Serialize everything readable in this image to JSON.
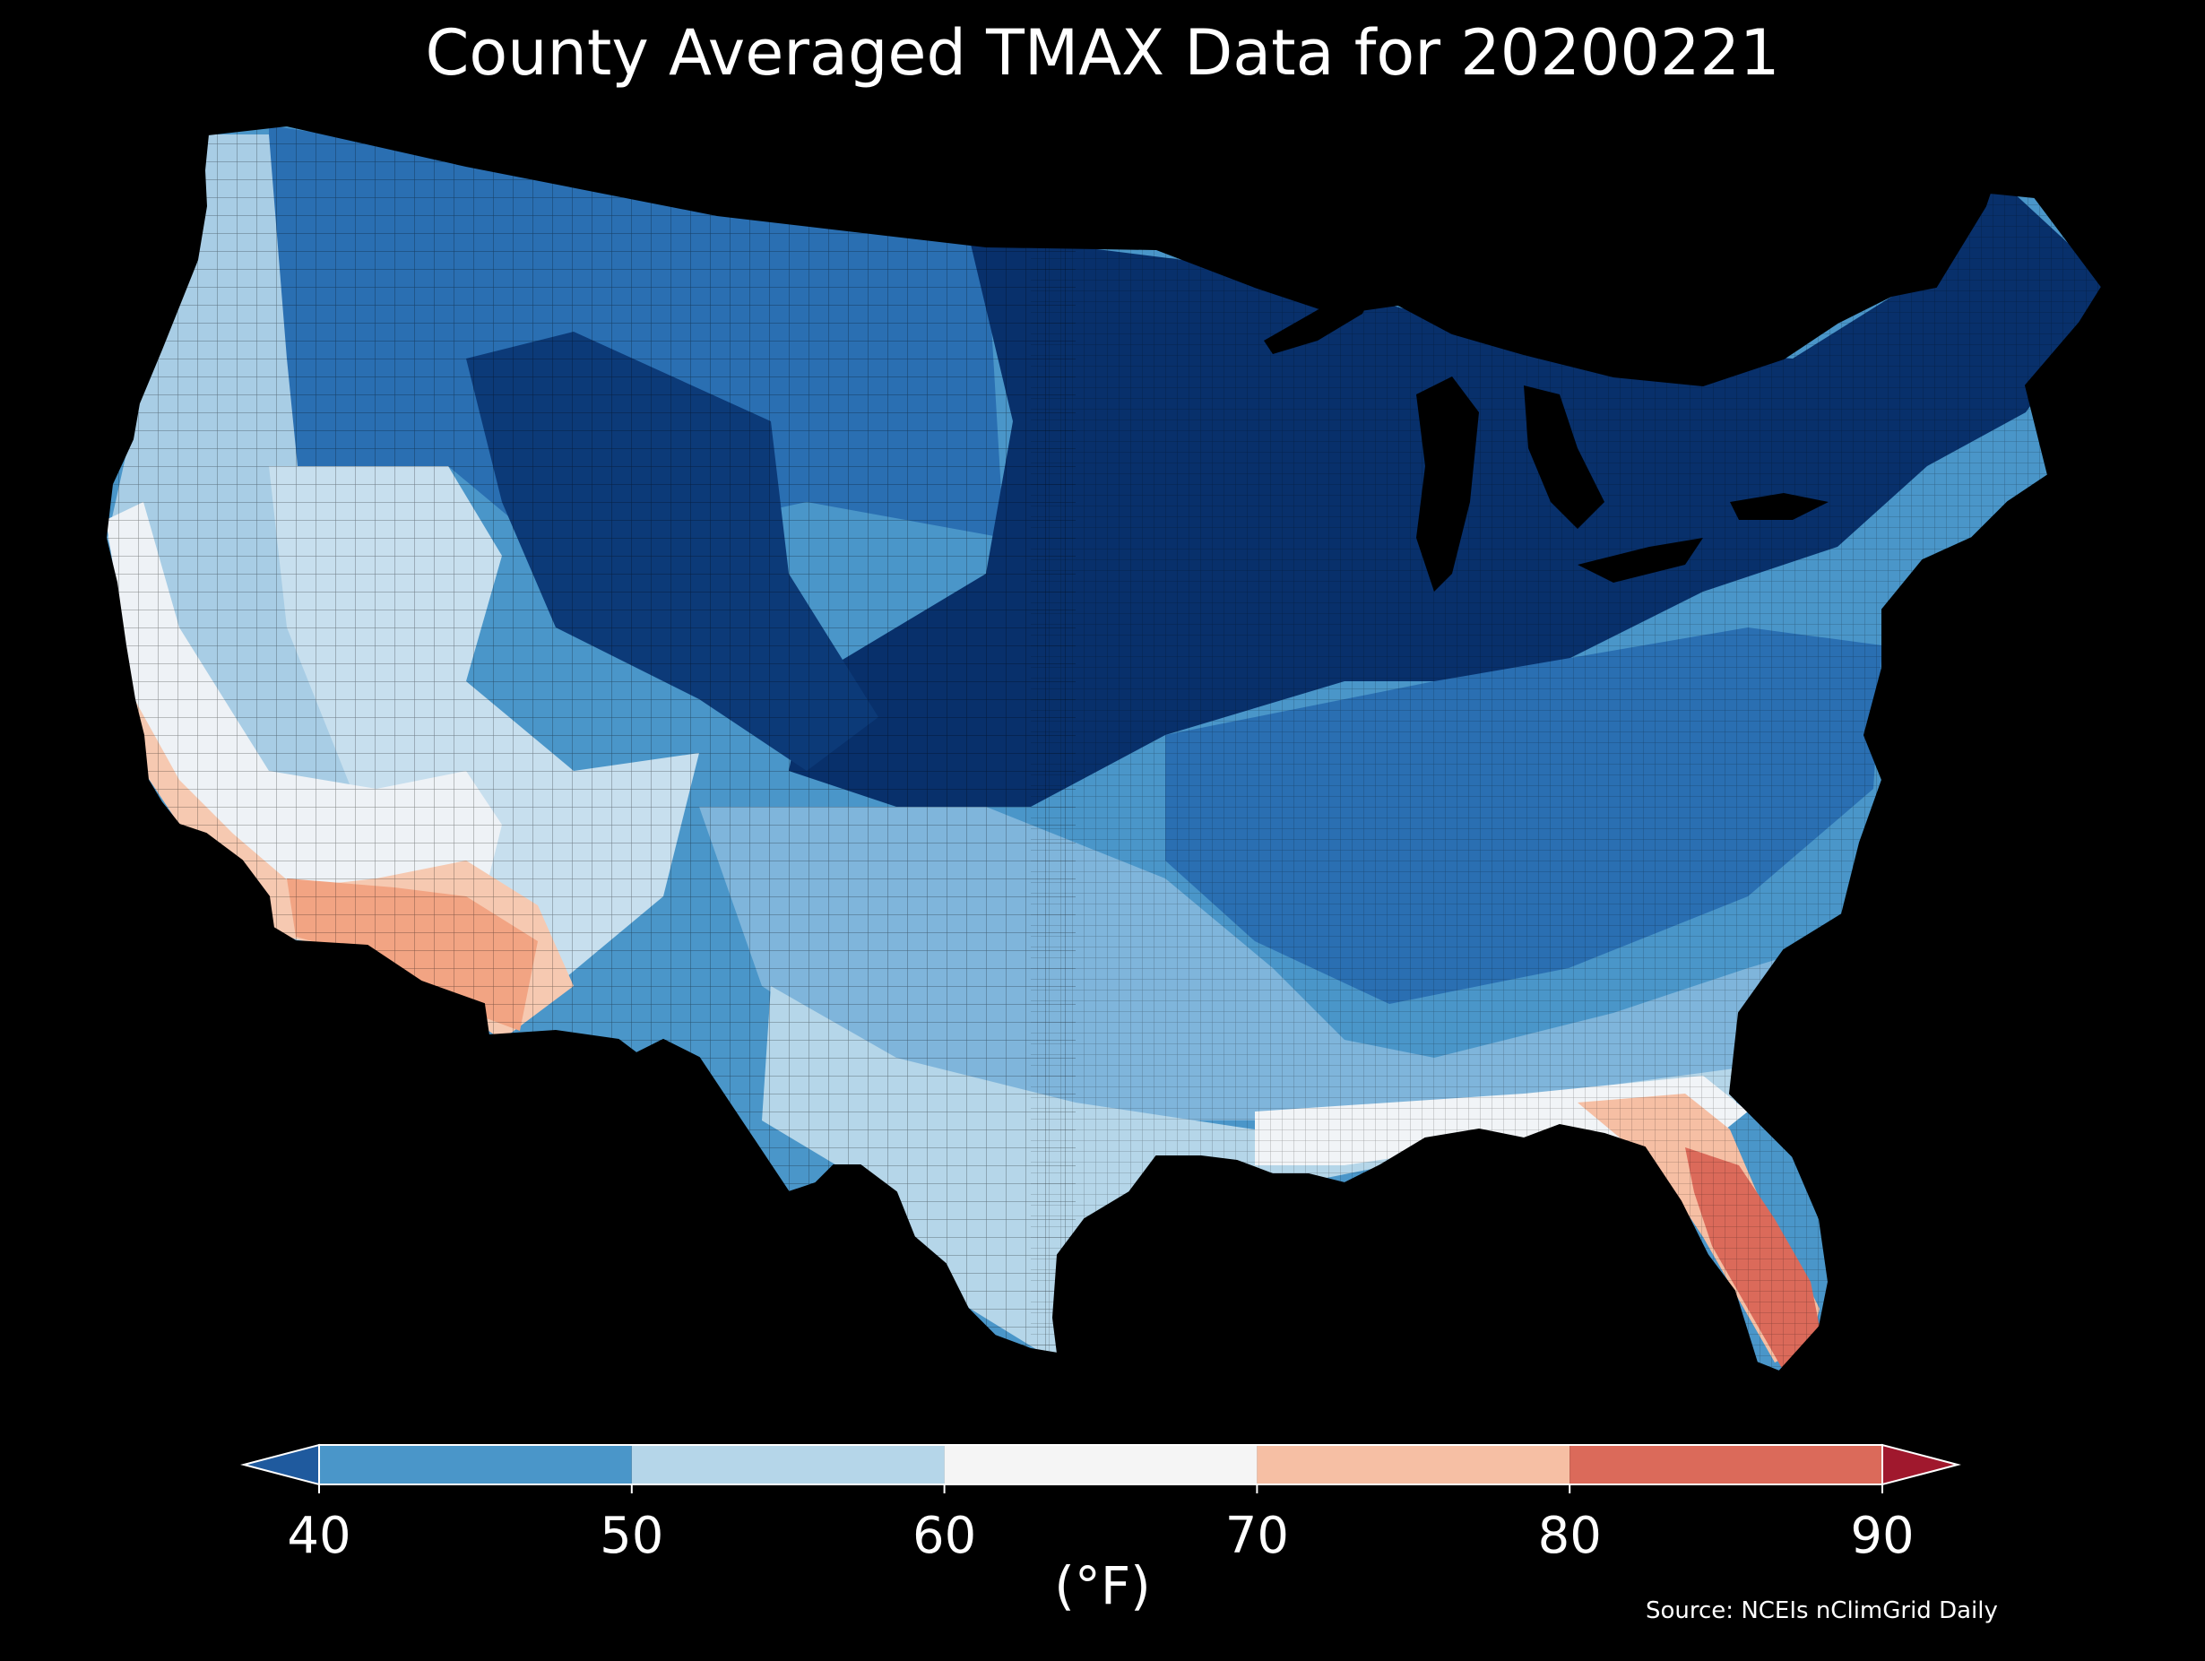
{
  "title": "County Averaged TMAX Data for 20200221",
  "colorbar": {
    "unit_label": "(°F)",
    "ticks": [
      "40",
      "50",
      "60",
      "70",
      "80",
      "90"
    ],
    "bins": [
      {
        "range": "<40",
        "color": "#1f5a9e"
      },
      {
        "range": "40-50",
        "color": "#4a96c9"
      },
      {
        "range": "50-60",
        "color": "#b5d6e9"
      },
      {
        "range": "60-70",
        "color": "#f5f5f5"
      },
      {
        "range": "70-80",
        "color": "#f6bfa4"
      },
      {
        "range": "80-90",
        "color": "#db6a5a"
      },
      {
        "range": ">90",
        "color": "#a0182d"
      }
    ]
  },
  "map": {
    "region": "Contiguous United States",
    "variable": "TMAX",
    "units": "°F",
    "background": "#000000",
    "palette": {
      "very_cold": "#08306b",
      "cold": "#1f5a9e",
      "cool": "#4a96c9",
      "mild": "#b5d6e9",
      "neutral": "#f5f5f5",
      "warm": "#f6bfa4",
      "hot": "#db6a5a"
    }
  },
  "source": "Source: NCEIs nClimGrid Daily"
}
